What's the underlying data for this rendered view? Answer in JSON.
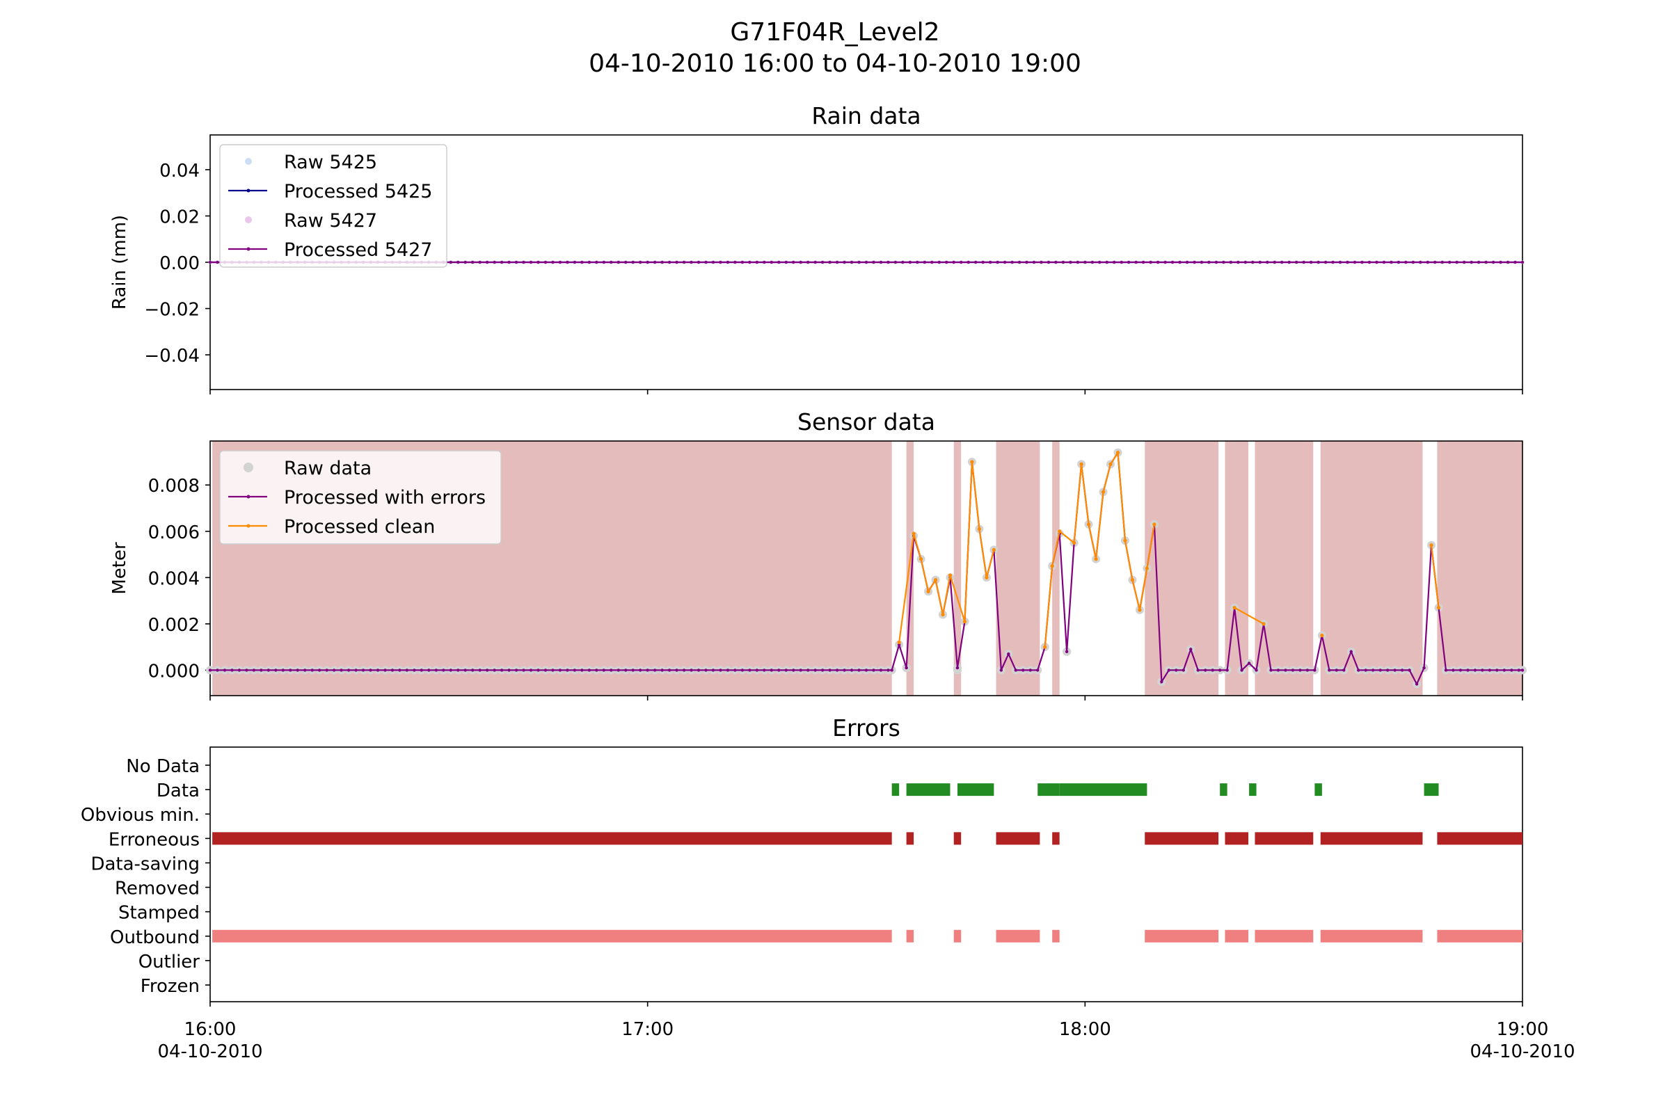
{
  "figure": {
    "title_line1": "G71F04R_Level2",
    "title_line2": "04-10-2010 16:00 to 04-10-2010 19:00"
  },
  "x_axis": {
    "tick_labels": [
      {
        "time": "16:00",
        "date": "04-10-2010",
        "minutes": 0
      },
      {
        "time": "17:00",
        "date": "",
        "minutes": 60
      },
      {
        "time": "18:00",
        "date": "",
        "minutes": 120
      },
      {
        "time": "19:00",
        "date": "04-10-2010",
        "minutes": 180
      }
    ],
    "range_minutes": [
      0,
      180
    ]
  },
  "colors": {
    "raw_5425": "#aec7e8",
    "processed_5425": "#00008b",
    "raw_5427": "#dda0dd",
    "processed_5427": "#800080",
    "raw_data": "#d3d3d3",
    "processed_with_errors": "#800080",
    "processed_clean": "#ff8c00",
    "error_shade": "#e5bcbc",
    "data_bar": "#228b22",
    "erroneous_bar": "#b22222",
    "outbound_bar": "#f08080"
  },
  "chart_data": [
    {
      "type": "line",
      "title": "Rain data",
      "xlabel": "",
      "ylabel": "Rain (mm)",
      "ylim": [
        -0.055,
        0.055
      ],
      "yticks": [
        0.04,
        0.02,
        0.0,
        -0.02,
        -0.04
      ],
      "ytick_labels": [
        "0.04",
        "0.02",
        "0.00",
        "−0.02",
        "−0.04"
      ],
      "legend_location": "upper left",
      "legend": [
        "Raw 5425",
        "Processed 5425",
        "Raw 5427",
        "Processed 5427"
      ],
      "sample_interval_minutes": 1,
      "series": [
        {
          "name": "Raw 5425",
          "constant_value": 0.0
        },
        {
          "name": "Processed 5425",
          "constant_value": 0.0
        },
        {
          "name": "Raw 5427",
          "constant_value": 0.0
        },
        {
          "name": "Processed 5427",
          "constant_value": 0.0
        }
      ]
    },
    {
      "type": "line",
      "title": "Sensor data",
      "xlabel": "",
      "ylabel": "Meter",
      "ylim": [
        -0.0011,
        0.0099
      ],
      "yticks": [
        0.008,
        0.006,
        0.004,
        0.002,
        0.0
      ],
      "ytick_labels": [
        "0.008",
        "0.006",
        "0.004",
        "0.002",
        "0.000"
      ],
      "legend_location": "upper left",
      "legend": [
        "Raw data",
        "Processed with errors",
        "Processed clean"
      ],
      "baseline_value": 0.0,
      "error_shading_minutes": [
        [
          0.3,
          93.5
        ],
        [
          95.5,
          96.5
        ],
        [
          102.0,
          103.0
        ],
        [
          107.8,
          113.8
        ],
        [
          115.5,
          116.5
        ],
        [
          128.2,
          138.3
        ],
        [
          139.2,
          142.4
        ],
        [
          143.3,
          151.3
        ],
        [
          152.3,
          166.3
        ],
        [
          168.3,
          180.0
        ]
      ],
      "processed_with_errors": [
        [
          93.5,
          0.0
        ],
        [
          94.5,
          0.0011
        ],
        [
          95.5,
          0.0001
        ],
        [
          96.5,
          0.0058
        ],
        [
          97.5,
          0.0048
        ],
        [
          98.5,
          0.0034
        ],
        [
          99.5,
          0.0039
        ],
        [
          100.5,
          0.0024
        ],
        [
          101.5,
          0.004
        ],
        [
          102.5,
          0.0001
        ],
        [
          103.5,
          0.0021
        ],
        [
          104.5,
          0.009
        ],
        [
          105.5,
          0.0061
        ],
        [
          106.5,
          0.004
        ],
        [
          107.5,
          0.0052
        ],
        [
          108.5,
          0.0
        ],
        [
          109.5,
          0.0007
        ],
        [
          110.5,
          0.0
        ],
        [
          111.5,
          0.0
        ],
        [
          112.5,
          0.0
        ],
        [
          113.5,
          0.0
        ],
        [
          114.5,
          0.001
        ],
        [
          115.5,
          0.0045
        ],
        [
          116.5,
          0.0059
        ],
        [
          117.5,
          0.0008
        ],
        [
          118.5,
          0.0055
        ],
        [
          119.5,
          0.0089
        ],
        [
          120.5,
          0.0063
        ],
        [
          121.5,
          0.0048
        ],
        [
          122.5,
          0.0077
        ],
        [
          123.5,
          0.0089
        ],
        [
          124.5,
          0.0094
        ],
        [
          125.5,
          0.0056
        ],
        [
          126.5,
          0.0039
        ],
        [
          127.5,
          0.0026
        ],
        [
          128.5,
          0.0044
        ],
        [
          129.5,
          0.0063
        ],
        [
          130.5,
          -0.0005
        ],
        [
          131.5,
          0.0
        ],
        [
          132.5,
          0.0
        ],
        [
          133.5,
          0.0
        ],
        [
          134.5,
          0.0009
        ],
        [
          135.5,
          0.0
        ],
        [
          136.5,
          0.0
        ],
        [
          137.5,
          0.0
        ],
        [
          138.5,
          0.0
        ],
        [
          139.5,
          0.0
        ],
        [
          140.5,
          0.0027
        ],
        [
          141.5,
          0.0
        ],
        [
          142.5,
          0.0003
        ],
        [
          143.5,
          0.0
        ],
        [
          144.5,
          0.002
        ],
        [
          145.5,
          0.0
        ],
        [
          146.5,
          0.0
        ],
        [
          147.5,
          0.0
        ],
        [
          148.5,
          0.0
        ],
        [
          149.5,
          0.0
        ],
        [
          150.5,
          0.0
        ],
        [
          151.5,
          0.0
        ],
        [
          152.5,
          0.0015
        ],
        [
          153.5,
          0.0
        ],
        [
          154.5,
          0.0
        ],
        [
          155.5,
          0.0
        ],
        [
          156.5,
          0.0008
        ],
        [
          157.5,
          0.0
        ],
        [
          158.5,
          0.0
        ],
        [
          159.5,
          0.0
        ],
        [
          160.5,
          0.0
        ],
        [
          161.5,
          0.0
        ],
        [
          162.5,
          0.0
        ],
        [
          163.5,
          0.0
        ],
        [
          164.5,
          0.0
        ],
        [
          165.5,
          -0.0006
        ],
        [
          166.5,
          0.0001
        ],
        [
          167.5,
          0.0054
        ],
        [
          168.5,
          0.0027
        ],
        [
          169.5,
          0.0
        ],
        [
          170.5,
          0.0
        ],
        [
          171.5,
          0.0
        ],
        [
          172.5,
          0.0
        ],
        [
          173.5,
          0.0
        ],
        [
          174.5,
          0.0
        ],
        [
          175.5,
          0.0
        ],
        [
          176.5,
          0.0
        ],
        [
          177.5,
          0.0
        ],
        [
          178.5,
          0.0
        ],
        [
          179.5,
          0.0
        ],
        [
          180.0,
          0.0
        ]
      ],
      "raw_data_extra": [
        [
          102.5,
          0.0
        ],
        [
          95.5,
          0.0001
        ],
        [
          117.5,
          0.0008
        ],
        [
          130.5,
          -0.0005
        ],
        [
          165.5,
          -0.0006
        ]
      ],
      "processed_clean": [
        [
          [
            94.5,
            0.0012
          ],
          [
            96.5,
            0.0059
          ],
          [
            97.5,
            0.0048
          ],
          [
            98.5,
            0.0034
          ],
          [
            99.5,
            0.0039
          ],
          [
            100.5,
            0.0024
          ],
          [
            101.5,
            0.0041
          ],
          [
            103.5,
            0.0021
          ],
          [
            104.5,
            0.009
          ],
          [
            105.5,
            0.0061
          ],
          [
            106.5,
            0.004
          ],
          [
            107.5,
            0.0052
          ]
        ],
        [
          [
            114.5,
            0.001
          ],
          [
            115.5,
            0.0045
          ],
          [
            116.5,
            0.006
          ],
          [
            118.5,
            0.0055
          ],
          [
            119.5,
            0.0089
          ],
          [
            120.5,
            0.0063
          ],
          [
            121.5,
            0.0048
          ],
          [
            122.5,
            0.0077
          ],
          [
            123.5,
            0.0089
          ],
          [
            124.5,
            0.0094
          ],
          [
            125.5,
            0.0056
          ],
          [
            126.5,
            0.0039
          ],
          [
            127.5,
            0.0026
          ],
          [
            128.5,
            0.0044
          ],
          [
            129.5,
            0.0063
          ]
        ],
        [
          [
            140.5,
            0.0027
          ],
          [
            144.5,
            0.002
          ]
        ],
        [
          [
            152.5,
            0.0015
          ]
        ],
        [
          [
            167.5,
            0.0054
          ],
          [
            168.5,
            0.0027
          ]
        ]
      ]
    },
    {
      "type": "bar",
      "title": "Errors",
      "xlabel": "",
      "ylabel": "",
      "categories": [
        "No Data",
        "Data",
        "Obvious min.",
        "Erroneous",
        "Data-saving",
        "Removed",
        "Stamped",
        "Outbound",
        "Outlier",
        "Frozen"
      ],
      "series": [
        {
          "name": "Data",
          "intervals_minutes": [
            [
              93.5,
              94.5
            ],
            [
              95.5,
              101.5
            ],
            [
              102.5,
              107.5
            ],
            [
              113.5,
              116.5
            ],
            [
              116.5,
              128.5
            ],
            [
              138.5,
              139.5
            ],
            [
              142.5,
              143.5
            ],
            [
              151.5,
              152.5
            ],
            [
              166.5,
              168.5
            ]
          ]
        },
        {
          "name": "Erroneous",
          "intervals_minutes": [
            [
              0.3,
              93.5
            ],
            [
              95.5,
              96.5
            ],
            [
              102.0,
              103.0
            ],
            [
              107.8,
              113.8
            ],
            [
              115.5,
              116.5
            ],
            [
              128.2,
              138.3
            ],
            [
              139.2,
              142.4
            ],
            [
              143.3,
              151.3
            ],
            [
              152.3,
              166.3
            ],
            [
              168.3,
              180.0
            ]
          ]
        },
        {
          "name": "Outbound",
          "intervals_minutes": [
            [
              0.3,
              93.5
            ],
            [
              95.5,
              96.5
            ],
            [
              102.0,
              103.0
            ],
            [
              107.8,
              113.8
            ],
            [
              115.5,
              116.5
            ],
            [
              128.2,
              138.3
            ],
            [
              139.2,
              142.4
            ],
            [
              143.3,
              151.3
            ],
            [
              152.3,
              166.3
            ],
            [
              168.3,
              180.0
            ]
          ]
        }
      ]
    }
  ]
}
